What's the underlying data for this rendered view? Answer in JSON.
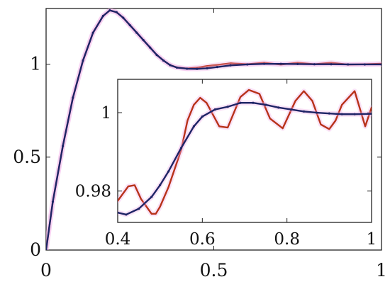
{
  "chart_data": [
    {
      "type": "line",
      "title": "",
      "xlabel": "",
      "ylabel": "",
      "xlim": [
        0,
        1
      ],
      "ylim": [
        0,
        1.3
      ],
      "x_ticks": [
        0,
        0.5,
        1
      ],
      "x_tick_labels": [
        "0",
        "0.5",
        "1"
      ],
      "y_ticks": [
        0,
        0.5,
        1
      ],
      "y_tick_labels": [
        "0",
        "0.5",
        "1"
      ],
      "grid": false,
      "colors": {
        "axis": "#222222",
        "red": "#b8321a",
        "blue": "#1e2466",
        "halo": "#f0b0e8"
      },
      "series": [
        {
          "color": "#b8321a",
          "x": [
            0,
            0.02,
            0.05,
            0.08,
            0.11,
            0.14,
            0.17,
            0.19,
            0.21,
            0.23,
            0.25,
            0.27,
            0.29,
            0.31,
            0.33,
            0.35,
            0.37,
            0.39,
            0.42,
            0.45,
            0.48,
            0.51,
            0.55,
            0.6,
            0.65,
            0.7,
            0.75,
            0.8,
            0.85,
            0.9,
            0.95,
            1.0
          ],
          "y": [
            0,
            0.26,
            0.56,
            0.82,
            1.02,
            1.17,
            1.26,
            1.29,
            1.28,
            1.25,
            1.21,
            1.17,
            1.13,
            1.09,
            1.05,
            1.02,
            0.995,
            0.983,
            0.977,
            0.982,
            0.99,
            0.996,
            1.005,
            1.0,
            1.008,
            0.998,
            1.008,
            1.0,
            1.008,
            0.998,
            1.0,
            1.003
          ]
        },
        {
          "color": "#1e2466",
          "x": [
            0,
            0.02,
            0.05,
            0.08,
            0.11,
            0.14,
            0.17,
            0.19,
            0.21,
            0.23,
            0.25,
            0.27,
            0.29,
            0.31,
            0.33,
            0.35,
            0.37,
            0.39,
            0.42,
            0.45,
            0.48,
            0.51,
            0.55,
            0.6,
            0.65,
            0.7,
            0.75,
            0.8,
            0.85,
            0.9,
            0.95,
            1.0
          ],
          "y": [
            0,
            0.26,
            0.56,
            0.82,
            1.02,
            1.17,
            1.26,
            1.29,
            1.28,
            1.25,
            1.21,
            1.17,
            1.13,
            1.09,
            1.05,
            1.02,
            0.995,
            0.982,
            0.976,
            0.975,
            0.978,
            0.985,
            0.994,
            0.999,
            1.002,
            1.002,
            1.001,
            1.0,
            1.0,
            0.999,
            0.999,
            0.999
          ]
        }
      ]
    },
    {
      "type": "line",
      "title": "",
      "xlabel": "",
      "ylabel": "",
      "xlim": [
        0.4,
        1
      ],
      "ylim": [
        0.972,
        1.0085
      ],
      "x_ticks": [
        0.4,
        0.6,
        0.8,
        1
      ],
      "x_tick_labels": [
        "0.4",
        "0.6",
        "0.8",
        "1"
      ],
      "y_ticks": [
        0.98,
        1
      ],
      "y_tick_labels": [
        "0.98",
        "1"
      ],
      "grid": false,
      "series": [
        {
          "color": "#b8321a",
          "x": [
            0.4,
            0.425,
            0.44,
            0.455,
            0.48,
            0.49,
            0.5,
            0.52,
            0.55,
            0.565,
            0.58,
            0.595,
            0.61,
            0.64,
            0.66,
            0.69,
            0.71,
            0.735,
            0.76,
            0.79,
            0.82,
            0.84,
            0.86,
            0.88,
            0.9,
            0.915,
            0.93,
            0.96,
            0.985,
            1.0
          ],
          "y": [
            0.9775,
            0.9812,
            0.9815,
            0.978,
            0.9742,
            0.9742,
            0.976,
            0.981,
            0.9905,
            0.998,
            1.002,
            1.0038,
            1.0025,
            0.9965,
            0.9962,
            1.004,
            1.0058,
            1.0048,
            0.9985,
            0.996,
            1.003,
            1.0055,
            1.003,
            0.997,
            0.9958,
            0.998,
            1.002,
            1.0055,
            0.9965,
            1.0013
          ]
        },
        {
          "color": "#1e2466",
          "x": [
            0.4,
            0.42,
            0.45,
            0.48,
            0.5,
            0.52,
            0.55,
            0.58,
            0.6,
            0.63,
            0.66,
            0.69,
            0.72,
            0.75,
            0.78,
            0.81,
            0.84,
            0.87,
            0.9,
            0.93,
            0.96,
            1.0
          ],
          "y": [
            0.9745,
            0.974,
            0.9755,
            0.9785,
            0.9815,
            0.985,
            0.991,
            0.9965,
            0.999,
            1.0008,
            1.0015,
            1.0025,
            1.0025,
            1.002,
            1.0013,
            1.0008,
            1.0003,
            1.0,
            0.9998,
            0.9996,
            0.9996,
            0.9997
          ]
        }
      ]
    }
  ]
}
